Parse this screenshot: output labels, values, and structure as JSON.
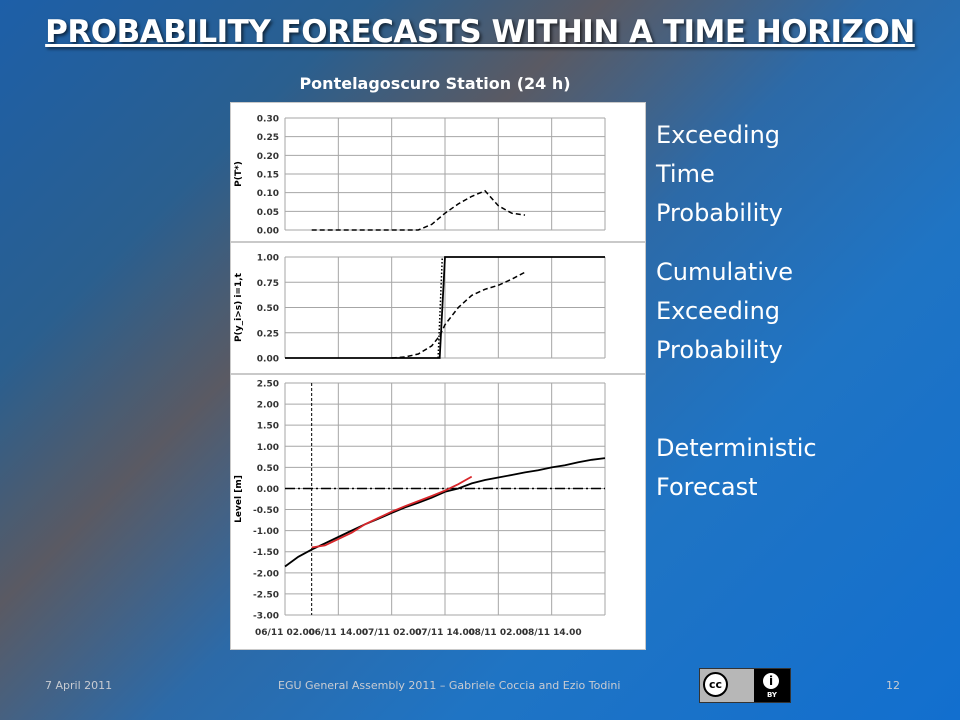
{
  "slide": {
    "title": "PROBABILITY FORECASTS WITHIN A TIME HORIZON",
    "subtitle": "Pontelagoscuro Station (24 h)",
    "labels": {
      "exceeding_time": [
        "Exceeding",
        "Time",
        "Probability"
      ],
      "cumulative": [
        "Cumulative",
        "Exceeding",
        "Probability"
      ],
      "deterministic": [
        "Deterministic",
        "Forecast"
      ]
    },
    "footer": {
      "date": "7 April 2011",
      "credit": "EGU General Assembly 2011 – Gabriele Coccia and Ezio Todini",
      "page": "12",
      "license_main": "cc",
      "license_by": "i",
      "license_by_text": "BY"
    }
  },
  "colors": {
    "grid": "#a6a6a6",
    "black": "#000000",
    "observed": "#000000",
    "forecast": "#d8262a"
  },
  "chart_data": [
    {
      "type": "line",
      "ylabel": "P(T*)",
      "ylim": [
        0,
        0.3
      ],
      "yticks": [
        "0.30",
        "0.25",
        "0.20",
        "0.15",
        "0.10",
        "0.05",
        "0.00"
      ],
      "xlim": [
        0,
        6
      ],
      "series": [
        {
          "style": "dashed",
          "x": [
            0.5,
            1.0,
            1.5,
            2.0,
            2.5,
            2.75,
            3.0,
            3.25,
            3.5,
            3.75,
            4.0,
            4.25,
            4.5
          ],
          "values": [
            0.0,
            0.0,
            0.0,
            0.0,
            0.0,
            0.015,
            0.045,
            0.07,
            0.09,
            0.105,
            0.065,
            0.045,
            0.04
          ]
        }
      ]
    },
    {
      "type": "line",
      "ylabel": "P(y_i>s) i=1,t",
      "ylim": [
        0,
        1.0
      ],
      "yticks": [
        "1.00",
        "0.75",
        "0.50",
        "0.25",
        "0.00"
      ],
      "xlim": [
        0,
        6
      ],
      "series": [
        {
          "style": "solid",
          "x": [
            0,
            2.9,
            3.0,
            6.0
          ],
          "values": [
            0,
            0,
            1,
            1
          ]
        },
        {
          "style": "dotted",
          "x": [
            2.87,
            2.95
          ],
          "values": [
            0,
            1
          ]
        },
        {
          "style": "dashed",
          "x": [
            2.0,
            2.25,
            2.5,
            2.75,
            2.9,
            3.0,
            3.25,
            3.5,
            3.75,
            4.0,
            4.25,
            4.5
          ],
          "values": [
            0,
            0.01,
            0.04,
            0.12,
            0.22,
            0.33,
            0.5,
            0.62,
            0.68,
            0.72,
            0.78,
            0.85
          ]
        }
      ]
    },
    {
      "type": "line",
      "ylabel": "Level [m]",
      "ylim": [
        -3.0,
        2.5
      ],
      "yticks": [
        "2.50",
        "2.00",
        "1.50",
        "1.00",
        "0.50",
        "0.00",
        "-0.50",
        "-1.00",
        "-1.50",
        "-2.00",
        "-2.50",
        "-3.00"
      ],
      "xlim": [
        0,
        6
      ],
      "categories": [
        "06/11 02.00",
        "06/11 14.00",
        "07/11 02.00",
        "07/11 14.00",
        "08/11 02.00",
        "08/11 14.00"
      ],
      "vline_x": 0.5,
      "threshold": 0.0,
      "series": [
        {
          "style": "solid",
          "color": "black",
          "x": [
            0,
            0.25,
            0.5,
            0.75,
            1.0,
            1.25,
            1.5,
            1.75,
            2.0,
            2.25,
            2.5,
            2.75,
            3.0,
            3.25,
            3.5,
            3.75,
            4.0,
            4.25,
            4.5,
            4.75,
            5.0,
            5.25,
            5.5,
            5.75,
            6.0
          ],
          "values": [
            -1.85,
            -1.62,
            -1.45,
            -1.3,
            -1.15,
            -1.0,
            -0.85,
            -0.72,
            -0.58,
            -0.45,
            -0.34,
            -0.22,
            -0.08,
            0.0,
            0.12,
            0.2,
            0.26,
            0.32,
            0.38,
            0.43,
            0.5,
            0.55,
            0.62,
            0.68,
            0.72
          ]
        },
        {
          "style": "solid",
          "color": "red",
          "x": [
            0.5,
            0.75,
            1.0,
            1.25,
            1.5,
            1.75,
            2.0,
            2.25,
            2.5,
            2.75,
            3.0,
            3.25,
            3.5
          ],
          "values": [
            -1.4,
            -1.35,
            -1.2,
            -1.05,
            -0.85,
            -0.7,
            -0.55,
            -0.42,
            -0.3,
            -0.18,
            -0.05,
            0.1,
            0.28
          ]
        }
      ]
    }
  ]
}
